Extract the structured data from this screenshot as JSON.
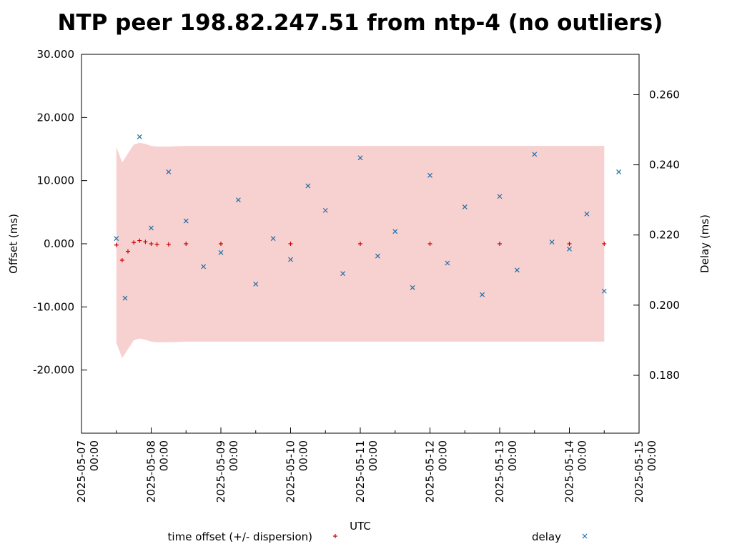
{
  "chart_data": {
    "type": "scatter",
    "title": "NTP peer 198.82.247.51 from ntp-4 (no outliers)",
    "xlabel": "UTC",
    "ylabel": "Offset (ms)",
    "y2label": "Delay (ms)",
    "xlim": [
      "2025-05-07 00:00",
      "2025-05-15 00:00"
    ],
    "ylim": [
      -30,
      30
    ],
    "y2lim": [
      0.1635,
      0.2715
    ],
    "x_ticks": [
      {
        "date": "2025-05-07",
        "time": "00:00"
      },
      {
        "date": "2025-05-08",
        "time": "00:00"
      },
      {
        "date": "2025-05-09",
        "time": "00:00"
      },
      {
        "date": "2025-05-10",
        "time": "00:00"
      },
      {
        "date": "2025-05-11",
        "time": "00:00"
      },
      {
        "date": "2025-05-12",
        "time": "00:00"
      },
      {
        "date": "2025-05-13",
        "time": "00:00"
      },
      {
        "date": "2025-05-14",
        "time": "00:00"
      },
      {
        "date": "2025-05-15",
        "time": "00:00"
      }
    ],
    "y_ticks": [
      {
        "value": 30,
        "label": "30.000"
      },
      {
        "value": 20,
        "label": "20.000"
      },
      {
        "value": 10,
        "label": "10.000"
      },
      {
        "value": 0,
        "label": "0.000"
      },
      {
        "value": -10,
        "label": "-10.000"
      },
      {
        "value": -20,
        "label": "-20.000"
      }
    ],
    "y2_ticks": [
      {
        "value": 0.26,
        "label": "0.260"
      },
      {
        "value": 0.24,
        "label": "0.240"
      },
      {
        "value": 0.22,
        "label": "0.220"
      },
      {
        "value": 0.2,
        "label": "0.200"
      },
      {
        "value": 0.18,
        "label": "0.180"
      }
    ],
    "grid": false,
    "legend_position": "bottom",
    "series": [
      {
        "name": "time offset (+/- dispersion)",
        "axis": "left",
        "marker": "+",
        "color": "#cc0000",
        "band_color": "#f7d0d0",
        "dispersion_ms": 15.5,
        "x": [
          "2025-05-07 12:00",
          "2025-05-07 14:00",
          "2025-05-07 16:00",
          "2025-05-07 18:00",
          "2025-05-07 20:00",
          "2025-05-07 22:00",
          "2025-05-08 00:00",
          "2025-05-08 02:00",
          "2025-05-08 06:00",
          "2025-05-08 12:00",
          "2025-05-09 00:00",
          "2025-05-10 00:00",
          "2025-05-11 00:00",
          "2025-05-12 00:00",
          "2025-05-13 00:00",
          "2025-05-14 00:00",
          "2025-05-14 12:00"
        ],
        "y": [
          -0.2,
          -2.6,
          -1.2,
          0.2,
          0.5,
          0.3,
          0.0,
          -0.1,
          -0.1,
          0.0,
          0.0,
          0.0,
          0.0,
          0.0,
          0.0,
          0.0,
          0.0
        ]
      },
      {
        "name": "delay",
        "axis": "right",
        "marker": "x",
        "color": "#1f6fa8",
        "x": [
          "2025-05-07 12:00",
          "2025-05-07 15:00",
          "2025-05-07 20:00",
          "2025-05-08 00:00",
          "2025-05-08 06:00",
          "2025-05-08 12:00",
          "2025-05-08 18:00",
          "2025-05-09 00:00",
          "2025-05-09 06:00",
          "2025-05-09 12:00",
          "2025-05-09 18:00",
          "2025-05-10 00:00",
          "2025-05-10 06:00",
          "2025-05-10 12:00",
          "2025-05-10 18:00",
          "2025-05-11 00:00",
          "2025-05-11 06:00",
          "2025-05-11 12:00",
          "2025-05-11 18:00",
          "2025-05-12 00:00",
          "2025-05-12 06:00",
          "2025-05-12 12:00",
          "2025-05-12 18:00",
          "2025-05-13 00:00",
          "2025-05-13 06:00",
          "2025-05-13 12:00",
          "2025-05-13 18:00",
          "2025-05-14 00:00",
          "2025-05-14 06:00",
          "2025-05-14 12:00",
          "2025-05-14 17:00"
        ],
        "y": [
          0.219,
          0.202,
          0.248,
          0.222,
          0.238,
          0.224,
          0.211,
          0.215,
          0.23,
          0.206,
          0.219,
          0.213,
          0.234,
          0.227,
          0.209,
          0.242,
          0.214,
          0.221,
          0.205,
          0.237,
          0.212,
          0.228,
          0.203,
          0.231,
          0.21,
          0.243,
          0.218,
          0.216,
          0.226,
          0.204,
          0.238
        ]
      }
    ]
  }
}
